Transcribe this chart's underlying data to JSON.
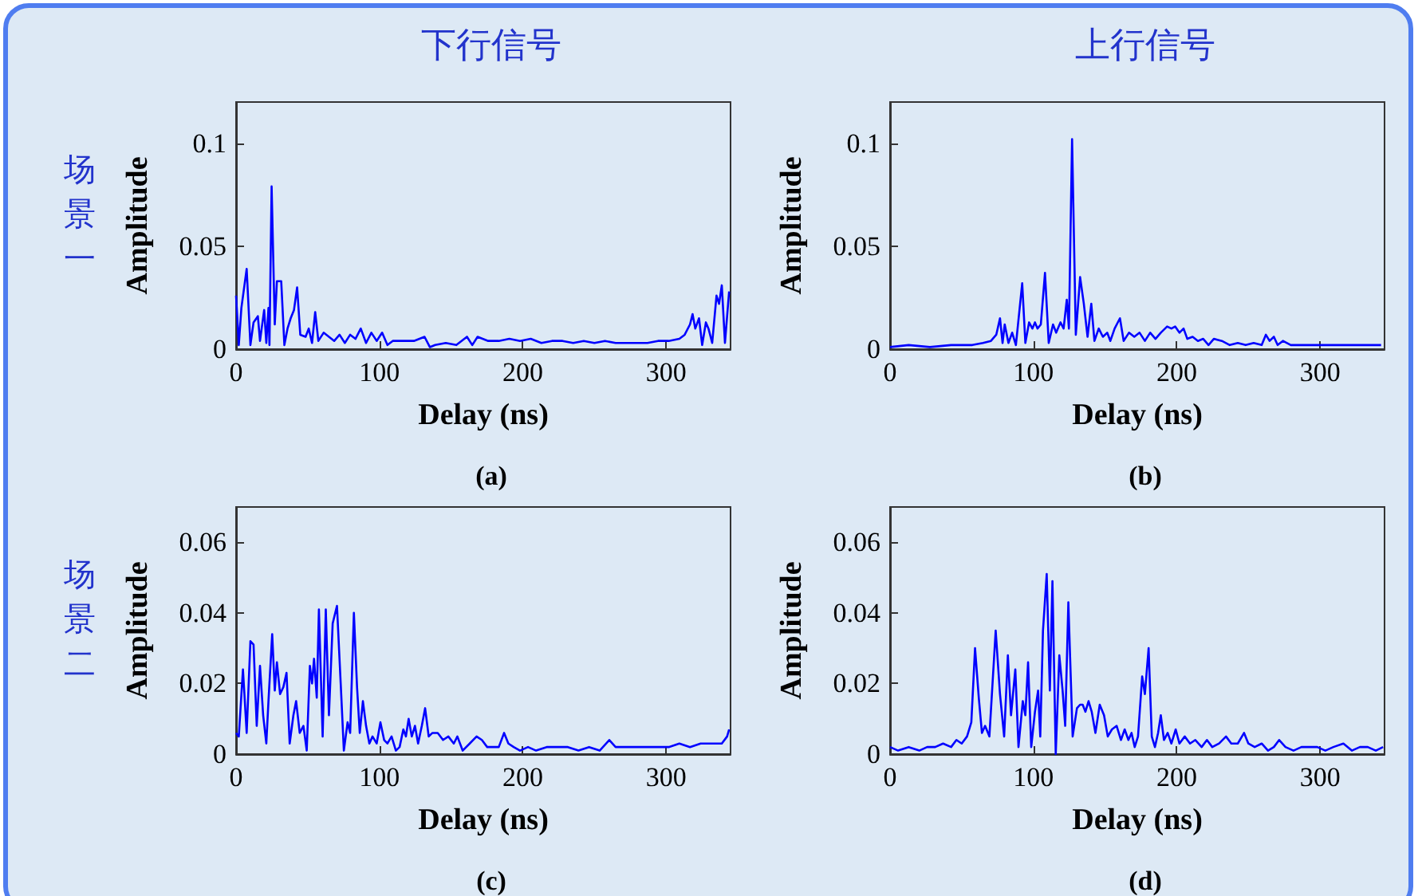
{
  "chart_data": [
    {
      "type": "line",
      "title": "下行信号",
      "subtitle": "(a)",
      "annotations": [
        "场景一"
      ],
      "xlabel": "Delay (ns)",
      "ylabel": "Amplitude",
      "color": "#0000ff",
      "marker": "none",
      "xlim": [
        0,
        345
      ],
      "ylim": [
        0,
        0.12
      ],
      "xticks": [
        0,
        100,
        200,
        300
      ],
      "yticks": [
        0,
        0.05,
        0.1
      ],
      "x": [
        0,
        1.9,
        3.7,
        7.4,
        10,
        12.2,
        15.2,
        16.7,
        19.6,
        21.1,
        22.6,
        23.3,
        24.8,
        27,
        28.5,
        31.5,
        33.7,
        35.9,
        38.1,
        40.4,
        42.6,
        44.8,
        48.5,
        50.7,
        53,
        55.2,
        57.4,
        61.1,
        64.8,
        68.5,
        72.2,
        75.9,
        79.6,
        83.3,
        87,
        90.7,
        94.4,
        98.1,
        101.9,
        105.6,
        109.3,
        116.7,
        124.1,
        131.5,
        135.2,
        138.9,
        146.3,
        153.7,
        161.1,
        164.8,
        168.5,
        175.9,
        183.3,
        190.7,
        198.1,
        205.6,
        213,
        220.4,
        227.8,
        235.2,
        242.6,
        250,
        257.4,
        264.8,
        272.2,
        279.6,
        287,
        294.4,
        301.9,
        309.3,
        313,
        316.7,
        318.5,
        320.4,
        323,
        325.2,
        327.8,
        329.6,
        332.2,
        335.2,
        337,
        338.9,
        341.1,
        344
      ],
      "values": [
        0.026,
        0.002,
        0.02,
        0.039,
        0.002,
        0.013,
        0.016,
        0.004,
        0.019,
        0.003,
        0.02,
        0.002,
        0.079,
        0.012,
        0.033,
        0.033,
        0.002,
        0.01,
        0.015,
        0.019,
        0.03,
        0.007,
        0.006,
        0.01,
        0.003,
        0.018,
        0.004,
        0.008,
        0.006,
        0.004,
        0.007,
        0.003,
        0.007,
        0.005,
        0.01,
        0.003,
        0.008,
        0.004,
        0.008,
        0.002,
        0.004,
        0.004,
        0.004,
        0.006,
        0.001,
        0.002,
        0.003,
        0.002,
        0.006,
        0.002,
        0.006,
        0.004,
        0.004,
        0.005,
        0.004,
        0.005,
        0.003,
        0.004,
        0.004,
        0.003,
        0.004,
        0.003,
        0.004,
        0.003,
        0.003,
        0.003,
        0.003,
        0.004,
        0.004,
        0.005,
        0.007,
        0.012,
        0.017,
        0.01,
        0.015,
        0.002,
        0.013,
        0.01,
        0.003,
        0.026,
        0.022,
        0.031,
        0.003,
        0.028
      ]
    },
    {
      "type": "line",
      "title": "上行信号",
      "subtitle": "(b)",
      "xlabel": "Delay (ns)",
      "ylabel": "Amplitude",
      "color": "#0000ff",
      "marker": "none",
      "xlim": [
        0,
        345
      ],
      "ylim": [
        0,
        0.12
      ],
      "xticks": [
        0,
        100,
        200,
        300
      ],
      "yticks": [
        0,
        0.05,
        0.1
      ],
      "x": [
        0,
        13,
        27.8,
        42.6,
        57.4,
        64.8,
        70.4,
        74.1,
        76.7,
        78.5,
        80,
        82.6,
        85.2,
        87.8,
        92.2,
        94.4,
        97,
        99.3,
        101.1,
        102.9,
        105.2,
        108.1,
        110.7,
        113.7,
        115.9,
        118.9,
        121.1,
        123.3,
        124.8,
        127,
        129.6,
        132.6,
        135.2,
        137.8,
        140.4,
        142.6,
        145.6,
        148.5,
        151.5,
        153.7,
        156.7,
        160.4,
        163,
        166.7,
        170.4,
        174.1,
        177.8,
        181.5,
        185.2,
        188.9,
        193.3,
        196.3,
        198.9,
        201.9,
        204.8,
        207.4,
        211.1,
        214.8,
        218.5,
        222.2,
        225.9,
        231.5,
        237,
        242.6,
        248.1,
        253.7,
        259.3,
        262.2,
        264.8,
        267.8,
        270.4,
        274.1,
        279.6,
        287,
        294.4,
        301.9,
        309.3,
        316.7,
        324.1,
        331.5,
        342.6
      ],
      "values": [
        0.001,
        0.002,
        0.001,
        0.002,
        0.002,
        0.003,
        0.004,
        0.007,
        0.015,
        0.003,
        0.012,
        0.003,
        0.008,
        0.002,
        0.032,
        0.003,
        0.013,
        0.01,
        0.013,
        0.01,
        0.012,
        0.037,
        0.003,
        0.012,
        0.008,
        0.013,
        0.01,
        0.024,
        0.01,
        0.102,
        0.007,
        0.035,
        0.022,
        0.006,
        0.022,
        0.004,
        0.01,
        0.006,
        0.008,
        0.004,
        0.01,
        0.015,
        0.004,
        0.008,
        0.006,
        0.008,
        0.004,
        0.008,
        0.005,
        0.008,
        0.011,
        0.01,
        0.011,
        0.008,
        0.01,
        0.005,
        0.006,
        0.004,
        0.005,
        0.002,
        0.005,
        0.004,
        0.002,
        0.003,
        0.002,
        0.003,
        0.002,
        0.007,
        0.004,
        0.006,
        0.002,
        0.004,
        0.002,
        0.002,
        0.002,
        0.002,
        0.002,
        0.002,
        0.002,
        0.002,
        0.002
      ]
    },
    {
      "type": "line",
      "subtitle": "(c)",
      "annotations": [
        "场景二"
      ],
      "xlabel": "Delay (ns)",
      "ylabel": "Amplitude",
      "color": "#0000ff",
      "marker": "none",
      "xlim": [
        0,
        345
      ],
      "ylim": [
        0,
        0.07
      ],
      "xticks": [
        0,
        100,
        200,
        300
      ],
      "yticks": [
        0,
        0.02,
        0.04,
        0.06
      ],
      "x": [
        0,
        1.9,
        4.8,
        7.4,
        10,
        12.2,
        14.4,
        16.7,
        18.9,
        21.1,
        22.6,
        25.2,
        27,
        28.5,
        30.7,
        33,
        35.2,
        37.4,
        40,
        41.9,
        44.4,
        47,
        49.3,
        51.5,
        53,
        54.4,
        56.3,
        57.8,
        60.4,
        62.6,
        64.8,
        67.4,
        70.4,
        73,
        75.2,
        77.8,
        79.6,
        82.2,
        84.4,
        86.3,
        88.5,
        90.7,
        93,
        95.2,
        98.1,
        100.7,
        103.3,
        105.6,
        108.5,
        111.5,
        114.1,
        116.7,
        118.5,
        120.4,
        122.6,
        124.8,
        127,
        129.6,
        131.9,
        134.4,
        137,
        140.7,
        144.4,
        148.1,
        151.9,
        154.4,
        158.1,
        163,
        167.8,
        171.5,
        175.2,
        179.6,
        183.3,
        187,
        190,
        193.7,
        198.1,
        203.7,
        209.3,
        216.7,
        224.1,
        231.5,
        238.9,
        246.3,
        253.7,
        260.4,
        264.8,
        272.2,
        279.6,
        287,
        294.4,
        301.9,
        309.3,
        316.7,
        324.1,
        331.5,
        338.9,
        342.6,
        344
      ],
      "values": [
        0.006,
        0.005,
        0.024,
        0.006,
        0.032,
        0.031,
        0.008,
        0.025,
        0.011,
        0.003,
        0.015,
        0.034,
        0.018,
        0.026,
        0.017,
        0.019,
        0.023,
        0.003,
        0.011,
        0.015,
        0.006,
        0.008,
        0.001,
        0.025,
        0.02,
        0.027,
        0.016,
        0.041,
        0.005,
        0.041,
        0.011,
        0.037,
        0.042,
        0.02,
        0.001,
        0.009,
        0.006,
        0.04,
        0.019,
        0.006,
        0.015,
        0.008,
        0.003,
        0.005,
        0.003,
        0.009,
        0.004,
        0.003,
        0.005,
        0.001,
        0.002,
        0.007,
        0.005,
        0.01,
        0.005,
        0.008,
        0.003,
        0.008,
        0.013,
        0.005,
        0.006,
        0.006,
        0.004,
        0.005,
        0.003,
        0.005,
        0.001,
        0.003,
        0.005,
        0.004,
        0.002,
        0.002,
        0.002,
        0.006,
        0.003,
        0.002,
        0.001,
        0.002,
        0.001,
        0.002,
        0.002,
        0.002,
        0.001,
        0.002,
        0.001,
        0.004,
        0.002,
        0.002,
        0.002,
        0.002,
        0.002,
        0.002,
        0.003,
        0.002,
        0.003,
        0.003,
        0.003,
        0.005,
        0.007
      ]
    },
    {
      "type": "line",
      "subtitle": "(d)",
      "xlabel": "Delay (ns)",
      "ylabel": "Amplitude",
      "color": "#0000ff",
      "marker": "none",
      "xlim": [
        0,
        345
      ],
      "ylim": [
        0,
        0.07
      ],
      "xticks": [
        0,
        100,
        200,
        300
      ],
      "yticks": [
        0,
        0.02,
        0.04,
        0.06
      ],
      "x": [
        0,
        5.6,
        13,
        20.4,
        25.9,
        31.5,
        37,
        42.6,
        46.3,
        50,
        53.7,
        56.7,
        59.3,
        61.9,
        64.1,
        66.3,
        69.3,
        73.7,
        76.7,
        79.6,
        82.2,
        84.4,
        87.4,
        89.6,
        92.6,
        94.4,
        96.3,
        98.5,
        101.1,
        103.3,
        104.8,
        106.7,
        109.3,
        111.5,
        113.3,
        115.6,
        118.1,
        120.4,
        122.2,
        124.4,
        127.4,
        130.4,
        132.6,
        134.4,
        136.3,
        138.5,
        140.7,
        143.3,
        146.3,
        149.3,
        151.9,
        154.8,
        158.1,
        161.1,
        163.7,
        166.3,
        168.5,
        170.7,
        173,
        175.9,
        177.8,
        180.4,
        182.6,
        184.8,
        187,
        188.9,
        191.1,
        193.7,
        196.3,
        199.3,
        201.9,
        205.6,
        209.3,
        213,
        217.4,
        221.1,
        224.8,
        229.6,
        234.4,
        238.1,
        242.6,
        247,
        250,
        254.4,
        259.3,
        263.7,
        267.8,
        271.5,
        275.9,
        281.5,
        287,
        292.6,
        298.1,
        303.7,
        309.3,
        316.3,
        322.2,
        327.8,
        333.3,
        338.9,
        344
      ],
      "values": [
        0.002,
        0.001,
        0.002,
        0.001,
        0.002,
        0.002,
        0.003,
        0.002,
        0.004,
        0.003,
        0.005,
        0.009,
        0.03,
        0.016,
        0.006,
        0.008,
        0.005,
        0.035,
        0.017,
        0.005,
        0.028,
        0.011,
        0.024,
        0.002,
        0.015,
        0.011,
        0.026,
        0.002,
        0.012,
        0.018,
        0.005,
        0.035,
        0.051,
        0.018,
        0.049,
        0.0,
        0.028,
        0.018,
        0.008,
        0.043,
        0.005,
        0.013,
        0.014,
        0.014,
        0.012,
        0.015,
        0.012,
        0.006,
        0.014,
        0.011,
        0.005,
        0.007,
        0.008,
        0.004,
        0.007,
        0.004,
        0.006,
        0.002,
        0.005,
        0.022,
        0.017,
        0.03,
        0.005,
        0.002,
        0.006,
        0.011,
        0.004,
        0.006,
        0.003,
        0.007,
        0.003,
        0.005,
        0.003,
        0.004,
        0.002,
        0.004,
        0.002,
        0.003,
        0.005,
        0.003,
        0.003,
        0.006,
        0.003,
        0.002,
        0.003,
        0.001,
        0.002,
        0.004,
        0.002,
        0.001,
        0.002,
        0.002,
        0.002,
        0.001,
        0.002,
        0.003,
        0.001,
        0.002,
        0.002,
        0.001,
        0.002
      ]
    }
  ]
}
